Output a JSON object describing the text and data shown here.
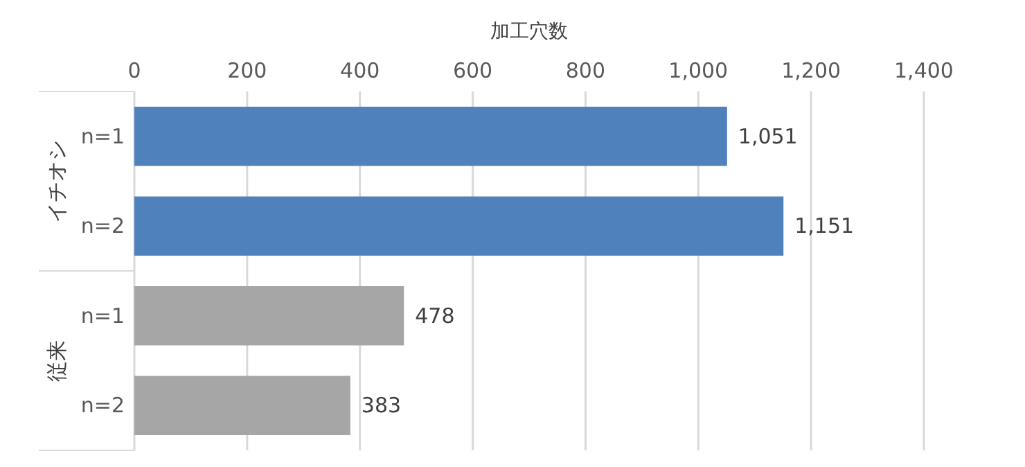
{
  "chart_data": {
    "type": "bar",
    "orientation": "horizontal",
    "xlabel": "加工穴数",
    "categories": [
      "n=1",
      "n=2",
      "n=1",
      "n=2"
    ],
    "values": [
      1051,
      1151,
      478,
      383
    ],
    "colors": [
      "#4f81bd",
      "#4f81bd",
      "#a6a6a6",
      "#a6a6a6"
    ],
    "value_labels": [
      "1,051",
      "1,151",
      "478",
      "383"
    ],
    "xlim": [
      0,
      1400
    ],
    "xticks": [
      0,
      200,
      400,
      600,
      800,
      {
        "value": 1000,
        "label": "1,000"
      },
      {
        "value": 1200,
        "label": "1,200"
      },
      {
        "value": 1400,
        "label": "1,400"
      }
    ],
    "grid": "x",
    "annotations": [
      "イチオシ",
      "従来"
    ]
  }
}
